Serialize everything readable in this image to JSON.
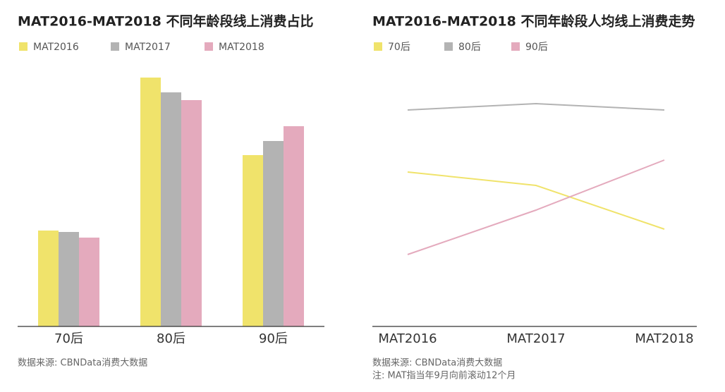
{
  "chart_data": [
    {
      "type": "bar",
      "title": "MAT2016-MAT2018 不同年龄段线上消费占比",
      "categories": [
        "70后",
        "80后",
        "90后"
      ],
      "series": [
        {
          "name": "MAT2016",
          "color": "#f0e36b",
          "values": [
            13.6,
            35.3,
            24.3
          ]
        },
        {
          "name": "MAT2017",
          "color": "#b3b3b3",
          "values": [
            13.4,
            33.2,
            26.3
          ]
        },
        {
          "name": "MAT2018",
          "color": "#e4aabd",
          "values": [
            12.6,
            32.1,
            28.4
          ]
        }
      ],
      "ylim": [
        0,
        40
      ],
      "source": "数据来源: CBNData消费大数据"
    },
    {
      "type": "line",
      "title": "MAT2016-MAT2018 不同年龄段人均线上消费走势",
      "categories": [
        "MAT2016",
        "MAT2017",
        "MAT2018"
      ],
      "series": [
        {
          "name": "70后",
          "color": "#f0e36b",
          "values": [
            21.9,
            20.0,
            13.8
          ]
        },
        {
          "name": "80后",
          "color": "#b3b3b3",
          "values": [
            30.7,
            31.6,
            30.7
          ]
        },
        {
          "name": "90后",
          "color": "#e4aabd",
          "values": [
            10.2,
            16.5,
            23.6
          ]
        }
      ],
      "ylim": [
        0,
        40
      ],
      "source": "数据来源: CBNData消费大数据",
      "note": "注: MAT指当年9月向前滚动12个月"
    }
  ]
}
